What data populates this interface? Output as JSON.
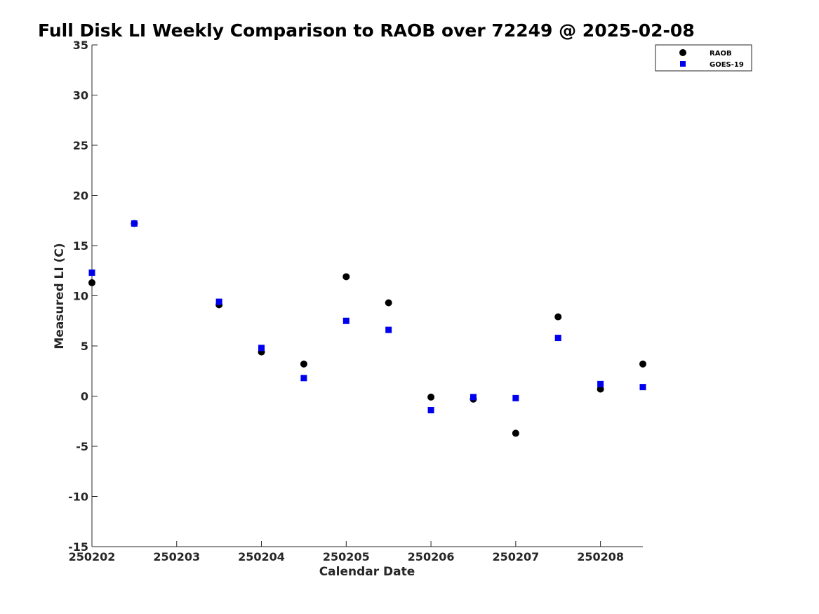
{
  "chart_data": {
    "type": "scatter",
    "title": "Full Disk LI Weekly Comparison to RAOB over 72249 @ 2025-02-08",
    "xlabel": "Calendar Date",
    "ylabel": "Measured LI (C)",
    "xlim": [
      0,
      6.5
    ],
    "ylim": [
      -15,
      35
    ],
    "x_ticks": [
      0,
      1,
      2,
      3,
      4,
      5,
      6
    ],
    "x_tick_labels": [
      "250202",
      "250203",
      "250204",
      "250205",
      "250206",
      "250207",
      "250208"
    ],
    "y_ticks": [
      -15,
      -10,
      -5,
      0,
      5,
      10,
      15,
      20,
      25,
      30,
      35
    ],
    "y_tick_labels": [
      "-15",
      "-10",
      "-5",
      "0",
      "5",
      "10",
      "15",
      "20",
      "25",
      "30",
      "35"
    ],
    "grid": false,
    "legend_position": "top-right",
    "series": [
      {
        "name": "RAOB",
        "marker": "circle",
        "color": "#000000",
        "x": [
          0,
          0.5,
          1.5,
          2,
          2.5,
          3,
          3.5,
          4,
          4.5,
          5,
          5.5,
          6,
          6.5
        ],
        "values": [
          11.3,
          17.2,
          9.1,
          4.4,
          3.2,
          11.9,
          9.3,
          -0.1,
          -0.3,
          -3.7,
          7.9,
          0.7,
          3.2
        ]
      },
      {
        "name": "GOES-19",
        "marker": "square",
        "color": "#0000ee",
        "x": [
          0,
          0.5,
          1.5,
          2,
          2.5,
          3,
          3.5,
          4,
          4.5,
          5,
          5.5,
          6,
          6.5
        ],
        "values": [
          12.3,
          17.2,
          9.4,
          4.8,
          1.8,
          7.5,
          6.6,
          -1.4,
          -0.1,
          -0.2,
          5.8,
          1.2,
          0.9
        ]
      }
    ]
  }
}
